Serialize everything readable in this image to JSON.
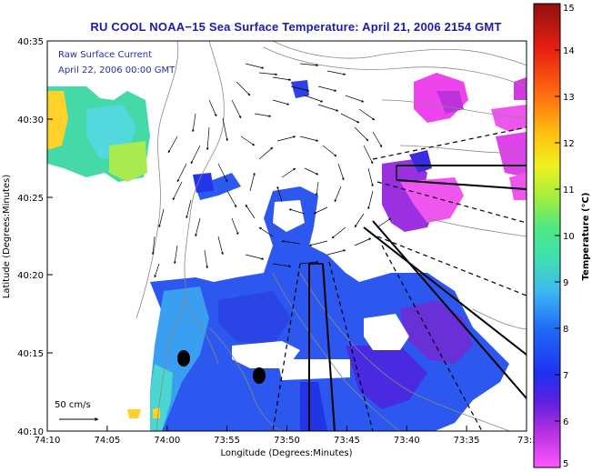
{
  "title": "RU COOL  NOAA−15  Sea Surface Temperature:  April 21, 2006 2154 GMT",
  "current_label": "Raw Surface Current",
  "current_time": "April 22, 2006 00:00 GMT",
  "scale_label": "50 cm/s",
  "x_axis_label": "Longitude (Degrees:Minutes)",
  "y_axis_label": "Latitude (Degrees:Minutes)",
  "x_ticks": [
    "74:10",
    "74:05",
    "74:00",
    "73:55",
    "73:50",
    "73:45",
    "73:40",
    "73:35",
    "73:3"
  ],
  "y_ticks": [
    "40:35",
    "40:30",
    "40:25",
    "40:20",
    "40:15",
    "40:10"
  ],
  "colorbar": {
    "label": "Temperature (°C)",
    "ticks": [
      "15",
      "14",
      "13",
      "12",
      "11",
      "10",
      "9",
      "8",
      "7",
      "6",
      "5"
    ],
    "min": 5,
    "max": 15
  },
  "colors": {
    "title": "#1b1bb4",
    "land": "#ffffff",
    "coast": "#777777"
  }
}
